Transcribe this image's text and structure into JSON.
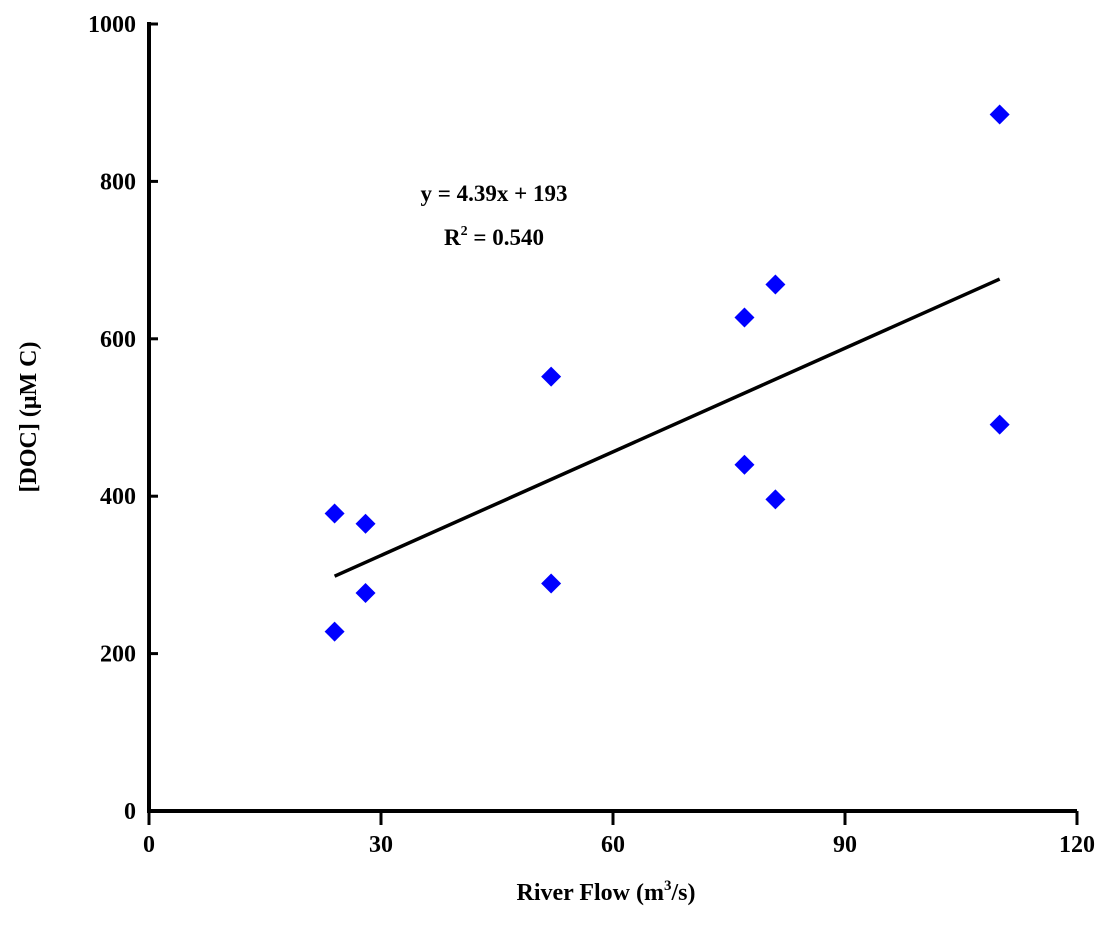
{
  "chart_data": {
    "type": "scatter",
    "title": "",
    "xlabel": {
      "pre": "River Flow (m",
      "sup": "3",
      "post": "/s)"
    },
    "ylabel": "[DOC] (μM C)",
    "xlim": [
      0,
      120
    ],
    "ylim": [
      0,
      1000
    ],
    "xticks": [
      0,
      30,
      60,
      90,
      120
    ],
    "yticks": [
      0,
      200,
      400,
      600,
      800,
      1000
    ],
    "grid": false,
    "legend": "none",
    "marker": "diamond",
    "marker_color": "#0000FF",
    "series": [
      {
        "points": [
          {
            "x": 24,
            "y": 228
          },
          {
            "x": 24,
            "y": 378
          },
          {
            "x": 28,
            "y": 365
          },
          {
            "x": 28,
            "y": 277
          },
          {
            "x": 52,
            "y": 552
          },
          {
            "x": 52,
            "y": 289
          },
          {
            "x": 77,
            "y": 627
          },
          {
            "x": 77,
            "y": 440
          },
          {
            "x": 81,
            "y": 669
          },
          {
            "x": 81,
            "y": 396
          },
          {
            "x": 110,
            "y": 885
          },
          {
            "x": 110,
            "y": 491
          }
        ]
      }
    ],
    "trendline": {
      "slope": 4.39,
      "intercept": 193,
      "x_range": [
        24,
        110
      ],
      "color": "#000000",
      "equation_label": "y = 4.39x + 193",
      "r2_label": {
        "pre": "R",
        "sup": "2",
        "post": " = 0.540"
      }
    }
  }
}
